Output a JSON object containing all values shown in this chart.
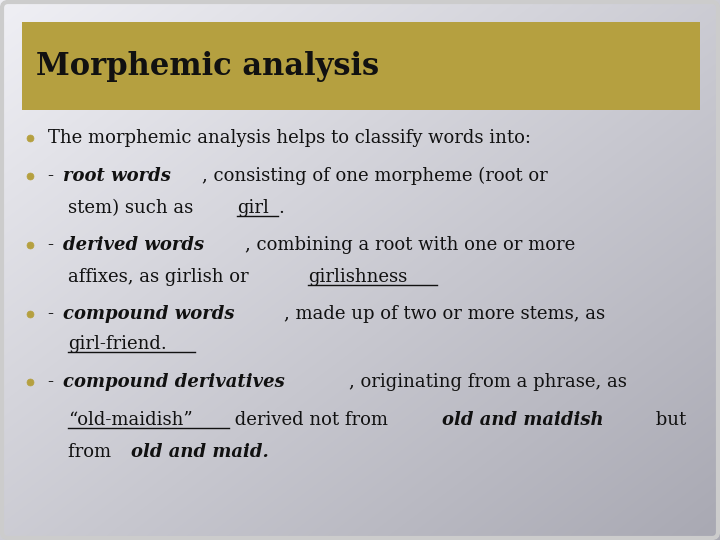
{
  "title": "Morphemic analysis",
  "title_bg_color": "#B5A040",
  "slide_bg_top": "#F0F0F0",
  "slide_bg_bottom": "#A0A0A8",
  "outer_bg": "#B0B0B8",
  "title_text_color": "#111111",
  "body_text_color": "#111111",
  "bullet_color": "#B5A040",
  "font_family": "DejaVu Serif",
  "title_fontsize": 22,
  "body_fontsize": 13,
  "lines": [
    {
      "bullet": true,
      "indent": false,
      "segments": [
        {
          "text": "The morphemic analysis helps to classify words into:",
          "bold": false,
          "italic": false,
          "underline": false
        }
      ]
    },
    {
      "bullet": true,
      "indent": false,
      "segments": [
        {
          "text": "- ",
          "bold": false,
          "italic": false,
          "underline": false
        },
        {
          "text": "root words",
          "bold": true,
          "italic": true,
          "underline": false
        },
        {
          "text": ", consisting of one morpheme (root or",
          "bold": false,
          "italic": false,
          "underline": false
        }
      ]
    },
    {
      "bullet": false,
      "indent": true,
      "segments": [
        {
          "text": "stem) such as ",
          "bold": false,
          "italic": false,
          "underline": false
        },
        {
          "text": "girl",
          "bold": false,
          "italic": false,
          "underline": true
        },
        {
          "text": ".",
          "bold": false,
          "italic": false,
          "underline": false
        }
      ]
    },
    {
      "bullet": true,
      "indent": false,
      "segments": [
        {
          "text": "- ",
          "bold": false,
          "italic": false,
          "underline": false
        },
        {
          "text": "derived words",
          "bold": true,
          "italic": true,
          "underline": false
        },
        {
          "text": ", combining a root with one or more",
          "bold": false,
          "italic": false,
          "underline": false
        }
      ]
    },
    {
      "bullet": false,
      "indent": true,
      "segments": [
        {
          "text": "affixes, as girlish or ",
          "bold": false,
          "italic": false,
          "underline": false
        },
        {
          "text": "girlishness",
          "bold": false,
          "italic": false,
          "underline": true
        }
      ]
    },
    {
      "bullet": true,
      "indent": false,
      "segments": [
        {
          "text": "- ",
          "bold": false,
          "italic": false,
          "underline": false
        },
        {
          "text": "compound words",
          "bold": true,
          "italic": true,
          "underline": false
        },
        {
          "text": ", made up of two or more stems, as",
          "bold": false,
          "italic": false,
          "underline": false
        }
      ]
    },
    {
      "bullet": false,
      "indent": true,
      "segments": [
        {
          "text": "girl-friend.",
          "bold": false,
          "italic": false,
          "underline": true
        }
      ]
    },
    {
      "bullet": true,
      "indent": false,
      "segments": [
        {
          "text": "- ",
          "bold": false,
          "italic": false,
          "underline": false
        },
        {
          "text": "compound derivatives",
          "bold": true,
          "italic": true,
          "underline": false
        },
        {
          "text": ", originating from a phrase, as",
          "bold": false,
          "italic": false,
          "underline": false
        }
      ]
    },
    {
      "bullet": false,
      "indent": true,
      "segments": [
        {
          "text": "“old-maidish”",
          "bold": false,
          "italic": false,
          "underline": true
        },
        {
          "text": " derived not from ",
          "bold": false,
          "italic": false,
          "underline": false
        },
        {
          "text": "old and maidish",
          "bold": true,
          "italic": true,
          "underline": false
        },
        {
          "text": " but",
          "bold": false,
          "italic": false,
          "underline": false
        }
      ]
    },
    {
      "bullet": false,
      "indent": true,
      "segments": [
        {
          "text": "from ",
          "bold": false,
          "italic": false,
          "underline": false
        },
        {
          "text": "old and maid.",
          "bold": true,
          "italic": true,
          "underline": false
        }
      ]
    }
  ]
}
